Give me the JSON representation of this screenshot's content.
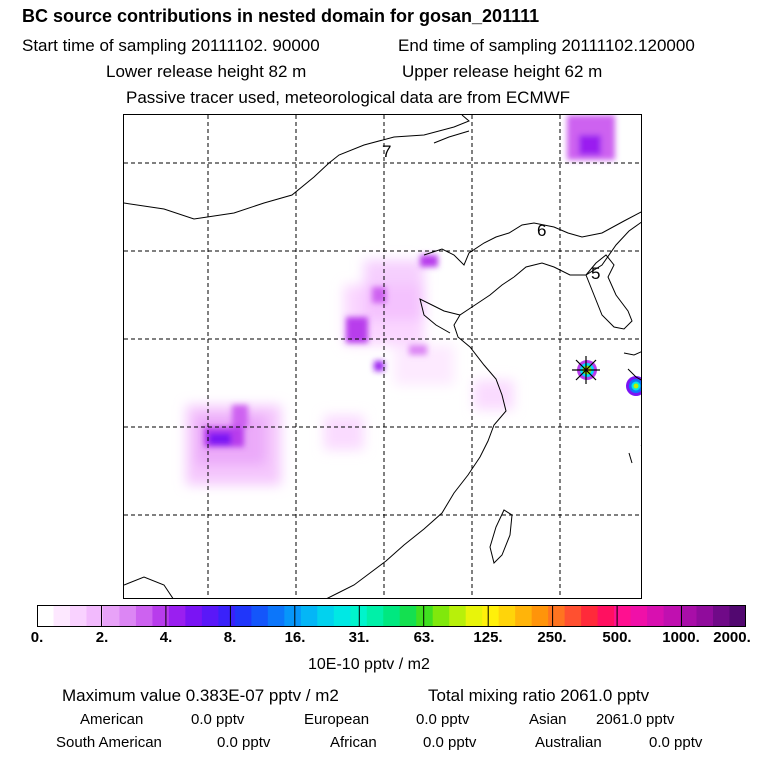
{
  "header": {
    "title": "BC  source contributions in nested domain for gosan_201111",
    "start_time": "Start time of sampling 20111102. 90000",
    "end_time": "End time of sampling 20111102.120000",
    "lower_release": "Lower release height   82 m",
    "upper_release": "Upper release height   62 m",
    "tracer_note": "Passive tracer used, meteorological data are from ECMWF"
  },
  "map": {
    "region_labels": [
      "7",
      "6",
      "5"
    ],
    "receptor": "gosan"
  },
  "colorbar": {
    "ticks": [
      "0.",
      "2.",
      "4.",
      "8.",
      "16.",
      "31.",
      "63.",
      "125.",
      "250.",
      "500.",
      "1000.",
      "2000."
    ],
    "units": "10E-10 pptv / m2",
    "colors": [
      "#ffffff",
      "#fde8ff",
      "#f9d2ff",
      "#f2bafd",
      "#e8a2f8",
      "#dc86f4",
      "#cd62f0",
      "#b83cec",
      "#9a1ff0",
      "#7a14f4",
      "#5a18f8",
      "#3a22fa",
      "#2036fa",
      "#1456fa",
      "#0c76fa",
      "#0696fa",
      "#04b6f6",
      "#02d2ee",
      "#00e8e4",
      "#00f4cc",
      "#00f0a8",
      "#00e880",
      "#14e050",
      "#40e020",
      "#80e80c",
      "#b8f00a",
      "#e8f40a",
      "#fff00a",
      "#ffd40a",
      "#ffb40a",
      "#ff940a",
      "#ff7420",
      "#ff5030",
      "#ff2a3a",
      "#ff1060",
      "#ff1090",
      "#f010a8",
      "#d810b0",
      "#c010b0",
      "#a80ea8",
      "#900c9c",
      "#700a88",
      "#520870"
    ]
  },
  "footer": {
    "max_value": "Maximum value  0.383E-07 pptv / m2",
    "total_mixing": "Total mixing ratio     2061.0 pptv",
    "american_label": "American",
    "american_value": "0.0 pptv",
    "european_label": "European",
    "european_value": "0.0 pptv",
    "asian_label": "Asian",
    "asian_value": "2061.0 pptv",
    "south_american_label": "South American",
    "south_american_value": "0.0 pptv",
    "african_label": "African",
    "african_value": "0.0 pptv",
    "australian_label": "Australian",
    "australian_value": "0.0 pptv"
  }
}
